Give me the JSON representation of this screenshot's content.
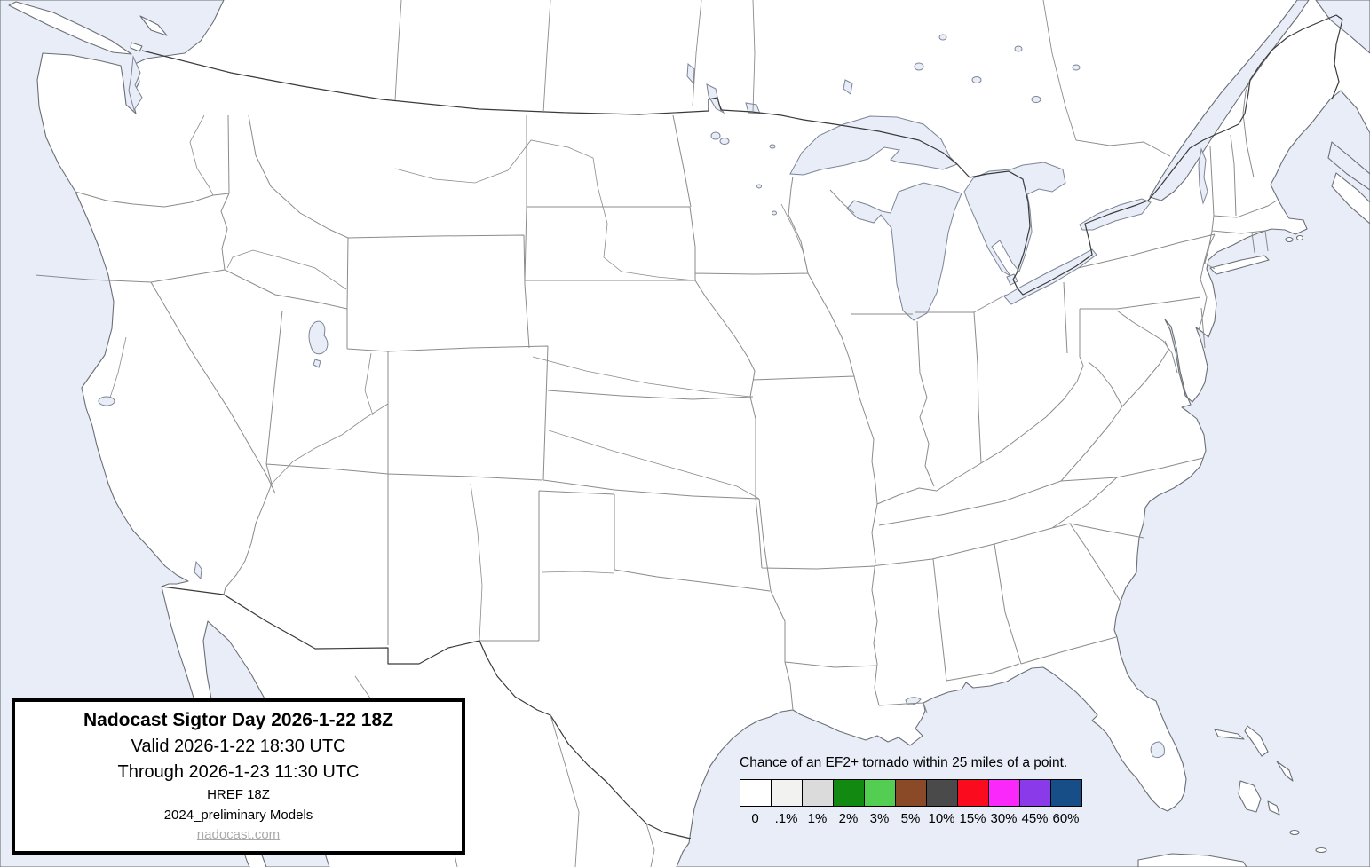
{
  "title_box": {
    "line1": "Nadocast Sigtor Day 2026-1-22 18Z",
    "line2": "Valid 2026-1-22 18:30 UTC",
    "line3": "Through 2026-1-23 11:30 UTC",
    "line4": "HREF 18Z",
    "line5": "2024_preliminary Models",
    "link": "nadocast.com"
  },
  "legend": {
    "title": "Chance of an EF2+ tornado within 25 miles of a point.",
    "items": [
      {
        "label": "0",
        "color": "#FFFFFF"
      },
      {
        "label": ".1%",
        "color": "#F2F2F0"
      },
      {
        "label": "1%",
        "color": "#DBDBDB"
      },
      {
        "label": "2%",
        "color": "#128A12"
      },
      {
        "label": "3%",
        "color": "#53CE53"
      },
      {
        "label": "5%",
        "color": "#8A4A28"
      },
      {
        "label": "10%",
        "color": "#4A4A4A"
      },
      {
        "label": "15%",
        "color": "#FA0C1E"
      },
      {
        "label": "30%",
        "color": "#FA28FA"
      },
      {
        "label": "45%",
        "color": "#8A3AE8"
      },
      {
        "label": "60%",
        "color": "#174E87"
      }
    ]
  },
  "map": {
    "water_color": "#E8EDF8",
    "land_color": "#FFFFFF",
    "coast_color": "#6A6F76",
    "state_border_color": "#8B8B8B",
    "intl_border_color": "#3A3A3A",
    "region": "Continental United States with southern Canada and northern Mexico"
  }
}
